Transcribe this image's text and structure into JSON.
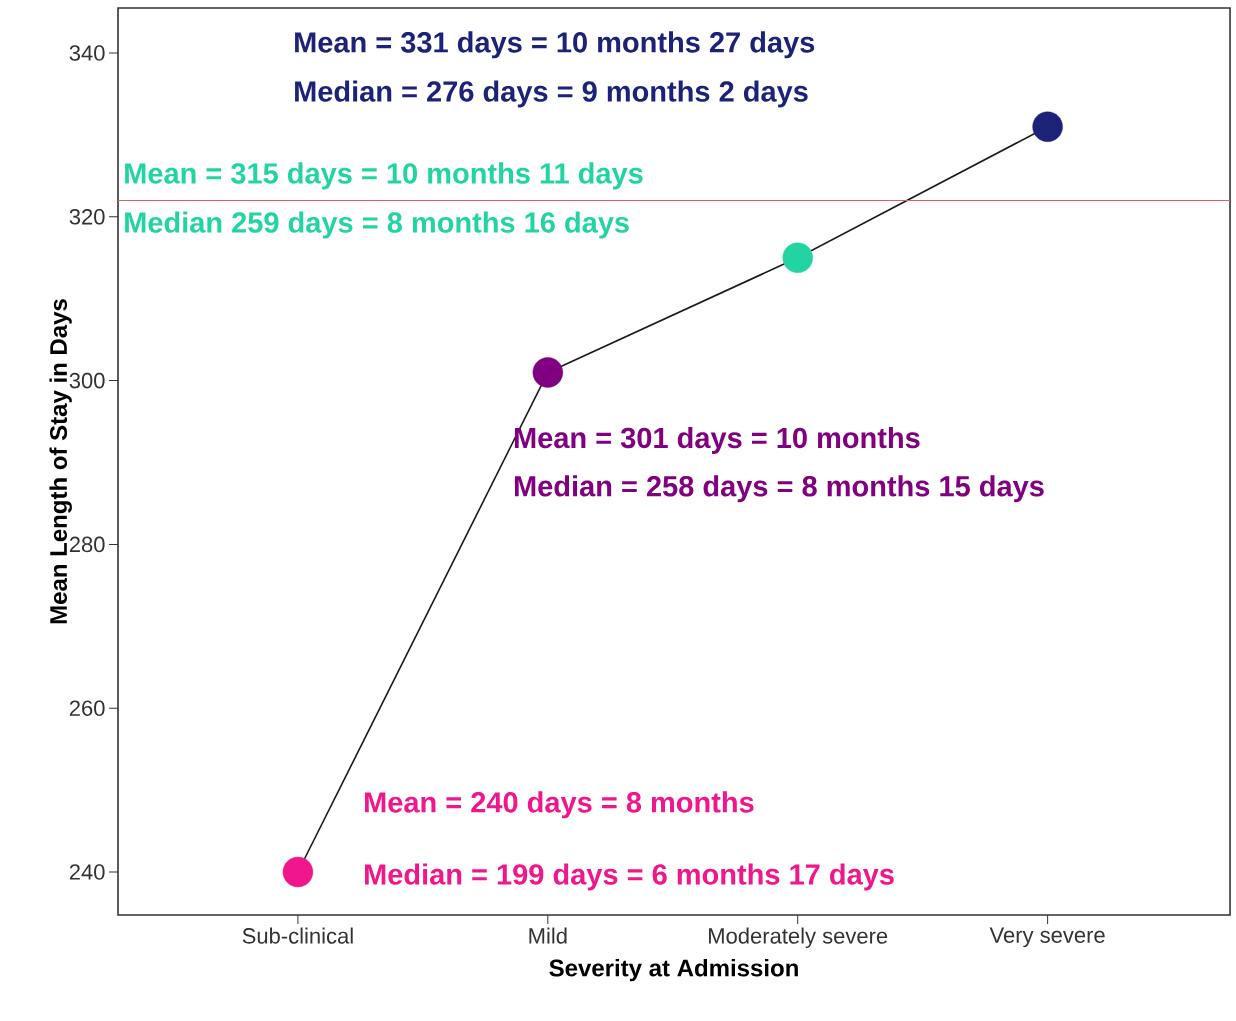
{
  "chart_data": {
    "type": "line",
    "xlabel": "Severity at Admission",
    "ylabel": "Mean Length of Stay in Days",
    "categories": [
      "Sub-clinical",
      "Mild",
      "Moderately severe",
      "Very severe"
    ],
    "values": [
      240,
      301,
      315,
      331
    ],
    "color": "#1a1a1a",
    "colors": [
      "#f0168c",
      "#800080",
      "#22d4a2",
      "#1c2277"
    ],
    "marker": "circle",
    "line_style": "solid",
    "ylim": [
      234.75,
      345.5
    ],
    "yticks": [
      240,
      260,
      280,
      300,
      320,
      340
    ],
    "grid": false,
    "ref_lines": [
      {
        "axis": "y",
        "value": 322,
        "color": "#e06060"
      }
    ],
    "annotations": [
      "Mean = 240 days = 8 months",
      "Median = 199 days = 6 months 17 days",
      "Mean = 301 days = 10 months",
      "Median = 258 days = 8 months 15 days",
      "Mean = 315 days = 10 months 11 days",
      "Median 259 days = 8 months 16 days",
      "Mean = 331 days = 10 months 27 days",
      "Median = 276 days = 9 months 2 days"
    ]
  }
}
